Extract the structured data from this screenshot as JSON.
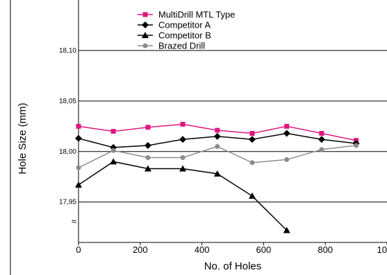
{
  "chart_data": {
    "type": "line",
    "xlabel": "No. of Holes",
    "ylabel": "Hole Size (mm)",
    "xlim": [
      0,
      1000
    ],
    "ylim": [
      17.91,
      18.15
    ],
    "x_ticks": [
      {
        "value": 0,
        "label": "0"
      },
      {
        "value": 200,
        "label": "200"
      },
      {
        "value": 400,
        "label": "400"
      },
      {
        "value": 600,
        "label": "600"
      },
      {
        "value": 800,
        "label": "800"
      },
      {
        "value": 1000,
        "label": "1000"
      }
    ],
    "y_ticks": [
      {
        "value": 18.1,
        "label": "18,10"
      },
      {
        "value": 18.05,
        "label": "18,05"
      },
      {
        "value": 18.0,
        "label": "18,00"
      },
      {
        "value": 17.95,
        "label": "17,95"
      }
    ],
    "axis_break_symbol": "≈",
    "grid": "horizontal",
    "legend_position": "top",
    "series": [
      {
        "name": "MultiDrill MTL Type",
        "color": "#e0177f",
        "marker": "square",
        "x": [
          0,
          113,
          225,
          338,
          450,
          563,
          675,
          788,
          900
        ],
        "y": [
          18.025,
          18.02,
          18.024,
          18.027,
          18.021,
          18.018,
          18.025,
          18.018,
          18.011
        ]
      },
      {
        "name": "Competitor A",
        "color": "#000000",
        "marker": "diamond",
        "x": [
          0,
          113,
          225,
          338,
          450,
          563,
          675,
          788,
          900
        ],
        "y": [
          18.013,
          18.004,
          18.006,
          18.012,
          18.015,
          18.012,
          18.018,
          18.012,
          18.008
        ]
      },
      {
        "name": "Competitor B",
        "color": "#000000",
        "marker": "triangle",
        "x": [
          0,
          113,
          225,
          338,
          450,
          563,
          675
        ],
        "y": [
          17.967,
          17.99,
          17.983,
          17.983,
          17.978,
          17.956,
          17.922
        ]
      },
      {
        "name": "Brazed Drill",
        "color": "#8c8c8c",
        "marker": "circle",
        "x": [
          0,
          113,
          225,
          338,
          450,
          563,
          675,
          788,
          900
        ],
        "y": [
          17.984,
          18.001,
          17.994,
          17.994,
          18.005,
          17.989,
          17.992,
          18.002,
          18.006
        ]
      }
    ]
  }
}
